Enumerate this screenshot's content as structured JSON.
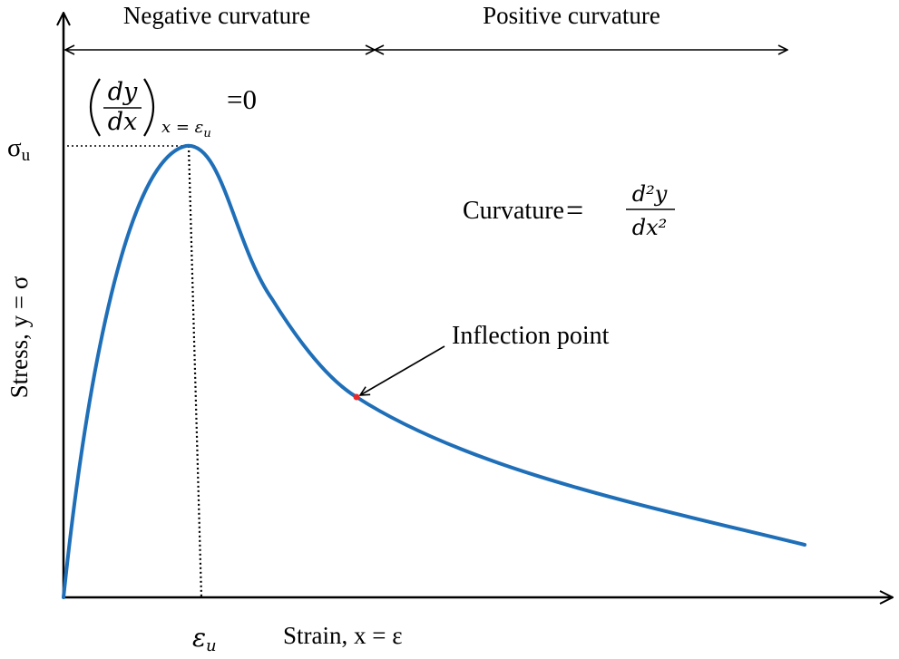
{
  "regions": {
    "negative": "Negative curvature",
    "positive": "Positive curvature"
  },
  "y_axis": {
    "label": "Stress, y = σ",
    "peak_tick": "σ",
    "peak_tick_sub": "u"
  },
  "x_axis": {
    "label": "Strain, x = ε",
    "peak_tick": "ε",
    "peak_tick_sub": "u"
  },
  "derivative_condition": {
    "numerator": "dy",
    "denominator": "dx",
    "subscript": "x = ε",
    "subscript_sub": "u",
    "equals_value": "=0"
  },
  "curvature_formula": {
    "label": "Curvature",
    "equals": "=",
    "numerator": "d²y",
    "denominator": "dx²"
  },
  "inflection": {
    "label": "Inflection point"
  },
  "colors": {
    "curve": "#1f6fb8",
    "inflection_marker": "#e8282a",
    "ink": "#000000"
  }
}
